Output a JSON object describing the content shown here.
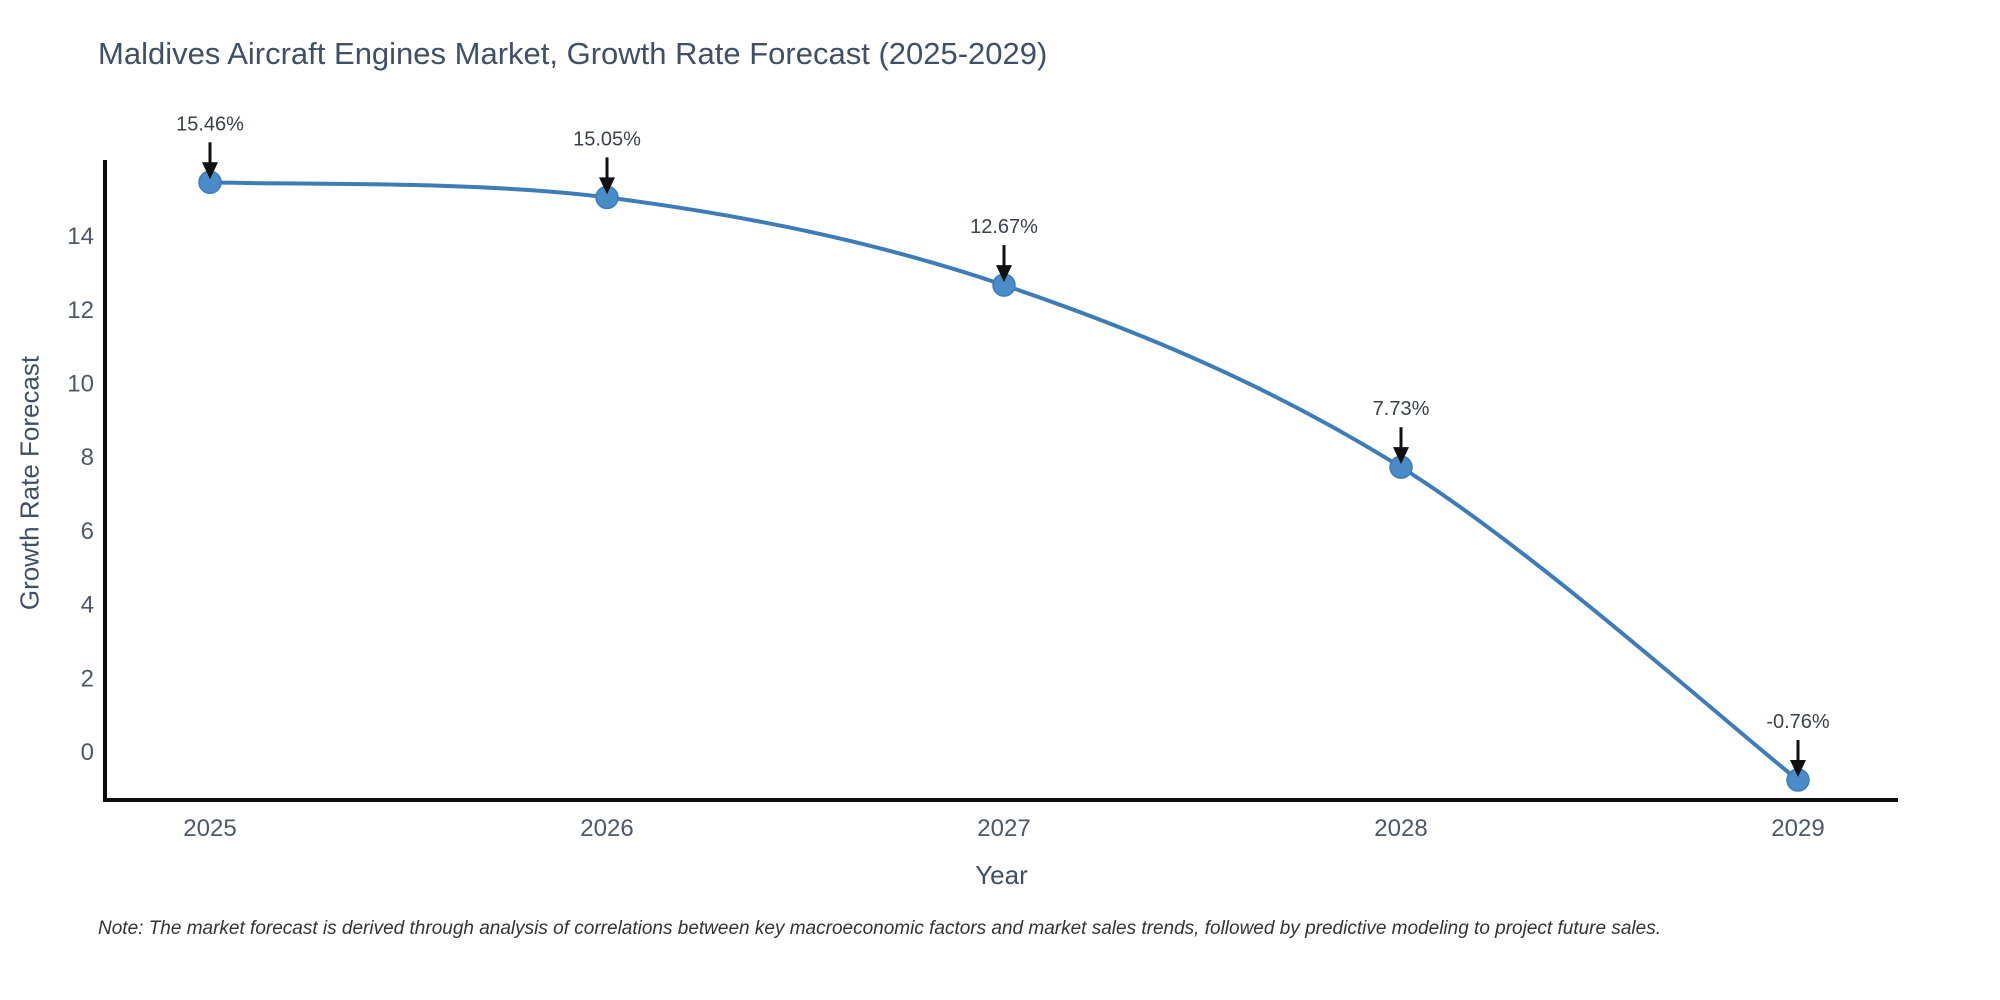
{
  "chart_data": {
    "type": "line",
    "title": "Maldives Aircraft Engines Market, Growth Rate Forecast (2025-2029)",
    "xlabel": "Year",
    "ylabel": "Growth Rate Forecast",
    "x": [
      2025,
      2026,
      2027,
      2028,
      2029
    ],
    "series": [
      {
        "name": "Growth Rate Forecast",
        "values": [
          15.46,
          15.05,
          12.67,
          7.73,
          -0.76
        ]
      }
    ],
    "point_labels": [
      "15.46%",
      "15.05%",
      "12.67%",
      "7.73%",
      "-0.76%"
    ],
    "xticks": [
      "2025",
      "2026",
      "2027",
      "2028",
      "2029"
    ],
    "yticks": [
      0,
      2,
      4,
      6,
      8,
      10,
      12,
      14
    ],
    "ylim": [
      -1.3,
      16.1
    ],
    "grid": false,
    "legend": "none",
    "note": "Note: The market forecast is derived through analysis of correlations between key macroeconomic factors and market sales trends, followed by predictive modeling to project future sales.",
    "colors": {
      "line": "#3e7cb8",
      "marker": "#4a8cc7",
      "axis": "#0d0d0d",
      "tick_label": "#4d5866",
      "title": "#3e4f66",
      "annotation": "#3b4149",
      "arrow": "#111111",
      "note": "#333333"
    }
  }
}
